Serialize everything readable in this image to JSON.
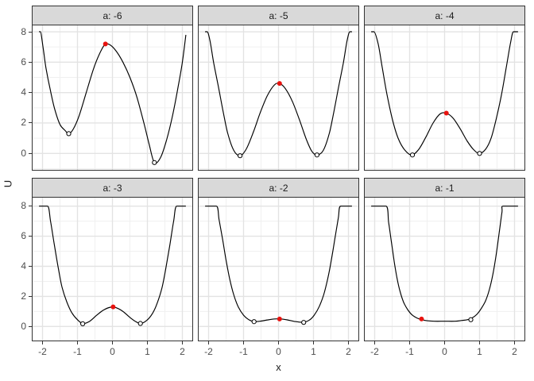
{
  "chart_data": {
    "type": "line",
    "description": "Faceted potential-energy curves U(x) for six values of parameter a, each curve clipped at U = 8, with stable equilibria drawn as open circles and the marked (red) point on each curve",
    "xlabel": "x",
    "ylabel": "U",
    "facet_variable": "a",
    "x_ticks": [
      -2,
      -1,
      0,
      1,
      2
    ],
    "y_ticks": [
      0,
      2,
      4,
      6,
      8
    ],
    "x_minor_ticks": [
      -1.5,
      -0.5,
      0.5,
      1.5
    ],
    "y_minor_ticks": [
      -1,
      1,
      3,
      5,
      7
    ],
    "x_range": [
      -2.31,
      2.31
    ],
    "y_range": [
      -1.15,
      8.5
    ],
    "clip_max": 8,
    "grid": "major and minor gridlines, light gray on white, panel border dark",
    "legend": "none",
    "facets": [
      {
        "label": "a: -6",
        "a": -6,
        "curve": [
          [
            -2.1,
            8
          ],
          [
            -2.06,
            8
          ],
          [
            -1.98,
            6.9
          ],
          [
            -1.9,
            5.6
          ],
          [
            -1.78,
            4.2
          ],
          [
            -1.65,
            2.9
          ],
          [
            -1.5,
            1.9
          ],
          [
            -1.35,
            1.5
          ],
          [
            -1.25,
            1.3
          ],
          [
            -1.12,
            1.6
          ],
          [
            -0.95,
            2.5
          ],
          [
            -0.75,
            4.0
          ],
          [
            -0.55,
            5.5
          ],
          [
            -0.38,
            6.5
          ],
          [
            -0.22,
            7.15
          ],
          [
            -0.08,
            7.15
          ],
          [
            0.1,
            6.75
          ],
          [
            0.3,
            6.0
          ],
          [
            0.5,
            5.0
          ],
          [
            0.7,
            3.7
          ],
          [
            0.9,
            2.0
          ],
          [
            1.05,
            0.6
          ],
          [
            1.2,
            -0.6
          ],
          [
            1.38,
            -0.25
          ],
          [
            1.55,
            0.9
          ],
          [
            1.72,
            2.5
          ],
          [
            1.88,
            4.4
          ],
          [
            2.0,
            6.0
          ],
          [
            2.1,
            7.8
          ]
        ],
        "stable_points": [
          [
            -1.25,
            1.3
          ],
          [
            1.2,
            -0.6
          ]
        ],
        "unstable_points": [
          [
            -0.2,
            7.2
          ]
        ]
      },
      {
        "label": "a: -5",
        "a": -5,
        "curve": [
          [
            -2.1,
            8
          ],
          [
            -2.04,
            8
          ],
          [
            -1.96,
            7.4
          ],
          [
            -1.85,
            5.9
          ],
          [
            -1.72,
            4.4
          ],
          [
            -1.58,
            2.7
          ],
          [
            -1.45,
            1.3
          ],
          [
            -1.28,
            0.2
          ],
          [
            -1.1,
            -0.15
          ],
          [
            -0.92,
            0.3
          ],
          [
            -0.72,
            1.4
          ],
          [
            -0.52,
            2.7
          ],
          [
            -0.32,
            3.8
          ],
          [
            -0.12,
            4.5
          ],
          [
            0.03,
            4.6
          ],
          [
            0.2,
            4.25
          ],
          [
            0.4,
            3.4
          ],
          [
            0.6,
            2.2
          ],
          [
            0.8,
            0.9
          ],
          [
            0.95,
            0.15
          ],
          [
            1.1,
            -0.1
          ],
          [
            1.28,
            0.2
          ],
          [
            1.45,
            1.3
          ],
          [
            1.58,
            2.7
          ],
          [
            1.72,
            4.4
          ],
          [
            1.85,
            5.9
          ],
          [
            1.96,
            7.4
          ],
          [
            2.04,
            8
          ],
          [
            2.1,
            8
          ]
        ],
        "stable_points": [
          [
            -1.1,
            -0.15
          ],
          [
            1.1,
            -0.1
          ]
        ],
        "unstable_points": [
          [
            0.03,
            4.6
          ]
        ]
      },
      {
        "label": "a: -4",
        "a": -4,
        "curve": [
          [
            -2.1,
            8
          ],
          [
            -2.02,
            8
          ],
          [
            -1.9,
            7.2
          ],
          [
            -1.78,
            5.6
          ],
          [
            -1.65,
            3.9
          ],
          [
            -1.5,
            2.3
          ],
          [
            -1.33,
            1.0
          ],
          [
            -1.13,
            0.2
          ],
          [
            -0.93,
            -0.1
          ],
          [
            -0.73,
            0.3
          ],
          [
            -0.53,
            1.1
          ],
          [
            -0.33,
            2.0
          ],
          [
            -0.13,
            2.6
          ],
          [
            0.05,
            2.65
          ],
          [
            0.25,
            2.3
          ],
          [
            0.45,
            1.6
          ],
          [
            0.65,
            0.8
          ],
          [
            0.83,
            0.25
          ],
          [
            1.0,
            0.0
          ],
          [
            1.18,
            0.3
          ],
          [
            1.33,
            1.0
          ],
          [
            1.48,
            2.3
          ],
          [
            1.63,
            3.9
          ],
          [
            1.76,
            5.6
          ],
          [
            1.88,
            7.2
          ],
          [
            1.97,
            8
          ],
          [
            2.1,
            8
          ]
        ],
        "stable_points": [
          [
            -0.92,
            -0.1
          ],
          [
            1.0,
            0.0
          ]
        ],
        "unstable_points": [
          [
            0.05,
            2.65
          ]
        ]
      },
      {
        "label": "a: -3",
        "a": -3,
        "curve": [
          [
            -2.1,
            8
          ],
          [
            -1.86,
            8
          ],
          [
            -1.77,
            7.0
          ],
          [
            -1.66,
            5.4
          ],
          [
            -1.55,
            3.9
          ],
          [
            -1.44,
            2.6
          ],
          [
            -1.3,
            1.6
          ],
          [
            -1.16,
            0.9
          ],
          [
            -1.0,
            0.45
          ],
          [
            -0.85,
            0.2
          ],
          [
            -0.65,
            0.35
          ],
          [
            -0.45,
            0.75
          ],
          [
            -0.25,
            1.1
          ],
          [
            -0.05,
            1.28
          ],
          [
            0.1,
            1.25
          ],
          [
            0.3,
            1.0
          ],
          [
            0.5,
            0.6
          ],
          [
            0.65,
            0.35
          ],
          [
            0.8,
            0.2
          ],
          [
            0.98,
            0.4
          ],
          [
            1.14,
            0.85
          ],
          [
            1.28,
            1.55
          ],
          [
            1.42,
            2.6
          ],
          [
            1.53,
            3.9
          ],
          [
            1.64,
            5.4
          ],
          [
            1.75,
            7.0
          ],
          [
            1.84,
            8
          ],
          [
            2.1,
            8
          ]
        ],
        "stable_points": [
          [
            -0.85,
            0.18
          ],
          [
            0.8,
            0.2
          ]
        ],
        "unstable_points": [
          [
            0.02,
            1.3
          ]
        ]
      },
      {
        "label": "a: -2",
        "a": -2,
        "curve": [
          [
            -2.1,
            8
          ],
          [
            -1.78,
            8
          ],
          [
            -1.7,
            7.1
          ],
          [
            -1.6,
            5.8
          ],
          [
            -1.5,
            4.4
          ],
          [
            -1.4,
            3.2
          ],
          [
            -1.28,
            2.1
          ],
          [
            -1.15,
            1.3
          ],
          [
            -1.0,
            0.75
          ],
          [
            -0.85,
            0.45
          ],
          [
            -0.7,
            0.32
          ],
          [
            -0.5,
            0.36
          ],
          [
            -0.3,
            0.44
          ],
          [
            -0.1,
            0.5
          ],
          [
            0.05,
            0.5
          ],
          [
            0.25,
            0.44
          ],
          [
            0.45,
            0.34
          ],
          [
            0.7,
            0.28
          ],
          [
            0.88,
            0.42
          ],
          [
            1.02,
            0.75
          ],
          [
            1.16,
            1.3
          ],
          [
            1.29,
            2.1
          ],
          [
            1.41,
            3.2
          ],
          [
            1.51,
            4.4
          ],
          [
            1.61,
            5.8
          ],
          [
            1.71,
            7.2
          ],
          [
            1.78,
            8
          ],
          [
            2.1,
            8
          ]
        ],
        "stable_points": [
          [
            -0.7,
            0.32
          ],
          [
            0.72,
            0.27
          ]
        ],
        "unstable_points": [
          [
            0.03,
            0.5
          ]
        ]
      },
      {
        "label": "a: -1",
        "a": -1,
        "curve": [
          [
            -2.1,
            8
          ],
          [
            -1.68,
            8
          ],
          [
            -1.6,
            6.9
          ],
          [
            -1.52,
            5.6
          ],
          [
            -1.44,
            4.3
          ],
          [
            -1.36,
            3.2
          ],
          [
            -1.27,
            2.3
          ],
          [
            -1.17,
            1.6
          ],
          [
            -1.05,
            1.1
          ],
          [
            -0.92,
            0.75
          ],
          [
            -0.78,
            0.55
          ],
          [
            -0.65,
            0.45
          ],
          [
            -0.5,
            0.38
          ],
          [
            -0.3,
            0.35
          ],
          [
            0.0,
            0.35
          ],
          [
            0.3,
            0.35
          ],
          [
            0.5,
            0.4
          ],
          [
            0.65,
            0.45
          ],
          [
            0.78,
            0.56
          ],
          [
            0.92,
            0.8
          ],
          [
            1.05,
            1.2
          ],
          [
            1.17,
            1.7
          ],
          [
            1.28,
            2.45
          ],
          [
            1.38,
            3.45
          ],
          [
            1.47,
            4.7
          ],
          [
            1.56,
            6.2
          ],
          [
            1.64,
            7.6
          ],
          [
            1.68,
            8
          ],
          [
            2.1,
            8
          ]
        ],
        "stable_points": [
          [
            0.75,
            0.45
          ]
        ],
        "unstable_points": [
          [
            -0.66,
            0.5
          ]
        ]
      }
    ]
  },
  "colors": {
    "background": "#FFFFFF",
    "panel_border": "#333333",
    "strip_fill": "#D9D9D9",
    "strip_border": "#333333",
    "strip_text": "#1A1A1A",
    "grid_major": "#E3E3E3",
    "grid_minor": "#F0F0F0",
    "curve": "#000000",
    "stable_point_fill": "#FFFFFF",
    "stable_point_stroke": "#000000",
    "unstable_point": "#E8130F",
    "tick_label": "#4D4D4D",
    "axis_title": "#1A1A1A",
    "tick_mark": "#333333"
  }
}
